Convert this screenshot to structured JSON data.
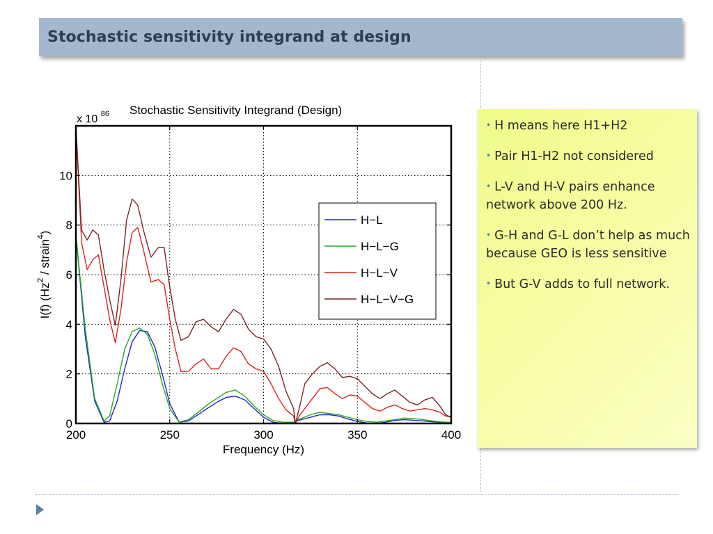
{
  "slide": {
    "title": "Stochastic sensitivity integrand at design"
  },
  "notes": [
    "H means here H1+H2",
    "Pair H1-H2 not considered",
    "L-V and H-V pairs enhance network above 200 Hz.",
    "G-H and G-L don’t help as much because GEO is less sensitive",
    "But G-V adds to full network."
  ],
  "colors": {
    "title_bg": "#a3b8cc",
    "note_bg": "#f5fc9c",
    "accent": "#5b7fa6"
  },
  "chart_data": {
    "type": "line",
    "title": "Stochastic Sensitivity Integrand (Design)",
    "xlabel": "Frequency (Hz)",
    "ylabel": "I(f) (Hz² / strain⁴)",
    "multiplier": "x 10",
    "multiplier_exp": "86",
    "xlim": [
      200,
      400
    ],
    "ylim": [
      0,
      12
    ],
    "xticks": [
      200,
      250,
      300,
      350,
      400
    ],
    "yticks": [
      0,
      2,
      4,
      6,
      8,
      10
    ],
    "grid": true,
    "legend_position": "right",
    "series": [
      {
        "name": "H−L",
        "color": "#2323c8",
        "x": [
          200,
          205,
          210,
          215,
          218,
          222,
          226,
          230,
          234,
          238,
          242,
          246,
          250,
          255,
          260,
          266,
          270,
          275,
          280,
          285,
          290,
          295,
          300,
          305,
          310,
          316,
          320,
          325,
          330,
          335,
          340,
          345,
          350,
          355,
          360,
          365,
          370,
          375,
          380,
          385,
          390,
          395,
          400
        ],
        "y": [
          7.6,
          3.5,
          0.9,
          0.05,
          0.1,
          0.9,
          2.2,
          3.3,
          3.75,
          3.7,
          3.1,
          2.0,
          0.8,
          0.05,
          0.1,
          0.4,
          0.6,
          0.85,
          1.05,
          1.1,
          0.95,
          0.6,
          0.25,
          0.05,
          0.0,
          0.05,
          0.15,
          0.25,
          0.35,
          0.35,
          0.3,
          0.18,
          0.08,
          0.02,
          0.0,
          0.05,
          0.12,
          0.15,
          0.13,
          0.1,
          0.07,
          0.04,
          0.02
        ]
      },
      {
        "name": "H−L−G",
        "color": "#21a821",
        "x": [
          200,
          205,
          210,
          215,
          218,
          222,
          226,
          230,
          234,
          238,
          242,
          246,
          250,
          255,
          260,
          266,
          270,
          275,
          280,
          285,
          290,
          295,
          300,
          305,
          310,
          316,
          320,
          325,
          330,
          335,
          340,
          345,
          350,
          355,
          360,
          365,
          370,
          375,
          380,
          385,
          390,
          395,
          400
        ],
        "y": [
          7.6,
          3.8,
          1.0,
          0.1,
          0.3,
          1.6,
          3.0,
          3.7,
          3.85,
          3.6,
          2.8,
          1.6,
          0.6,
          0.05,
          0.15,
          0.5,
          0.75,
          1.0,
          1.25,
          1.35,
          1.1,
          0.7,
          0.35,
          0.12,
          0.05,
          0.05,
          0.2,
          0.35,
          0.45,
          0.4,
          0.35,
          0.25,
          0.15,
          0.08,
          0.05,
          0.1,
          0.15,
          0.22,
          0.2,
          0.15,
          0.1,
          0.06,
          0.04
        ]
      },
      {
        "name": "H−L−V",
        "color": "#e0231a",
        "x": [
          200,
          203,
          206,
          209,
          212,
          215,
          218,
          221,
          224,
          227,
          230,
          233,
          236,
          240,
          244,
          247,
          250,
          253,
          256,
          260,
          264,
          268,
          272,
          276,
          280,
          284,
          288,
          292,
          296,
          300,
          304,
          308,
          312,
          316,
          317,
          319,
          322,
          326,
          330,
          334,
          338,
          342,
          346,
          350,
          354,
          358,
          362,
          366,
          370,
          374,
          378,
          382,
          386,
          390,
          394,
          397,
          400
        ],
        "y": [
          12.0,
          7.3,
          6.2,
          6.6,
          6.8,
          5.5,
          4.2,
          3.25,
          4.6,
          6.5,
          7.7,
          7.9,
          7.0,
          5.7,
          5.8,
          5.6,
          4.2,
          3.0,
          2.1,
          2.1,
          2.4,
          2.6,
          2.2,
          2.2,
          2.7,
          3.05,
          2.9,
          2.4,
          2.2,
          2.1,
          1.6,
          1.0,
          0.55,
          0.3,
          0.0,
          0.3,
          0.6,
          1.0,
          1.4,
          1.45,
          1.2,
          1.0,
          1.15,
          1.1,
          0.85,
          0.6,
          0.5,
          0.65,
          0.75,
          0.6,
          0.5,
          0.55,
          0.6,
          0.55,
          0.45,
          0.3,
          0.25
        ]
      },
      {
        "name": "H−L−V−G",
        "color": "#7a2424",
        "x": [
          200,
          203,
          206,
          209,
          212,
          215,
          218,
          221,
          224,
          227,
          230,
          233,
          236,
          240,
          244,
          247,
          250,
          253,
          256,
          260,
          264,
          268,
          272,
          276,
          280,
          284,
          288,
          292,
          296,
          300,
          304,
          308,
          312,
          316,
          317,
          319,
          322,
          326,
          330,
          334,
          338,
          342,
          346,
          350,
          354,
          358,
          362,
          366,
          370,
          374,
          378,
          382,
          386,
          390,
          394,
          397,
          400
        ],
        "y": [
          12.0,
          7.8,
          7.4,
          7.8,
          7.6,
          6.2,
          5.0,
          3.95,
          5.8,
          8.2,
          9.05,
          8.8,
          7.8,
          6.7,
          7.1,
          7.1,
          5.5,
          4.2,
          3.35,
          3.5,
          4.1,
          4.2,
          3.9,
          3.7,
          4.2,
          4.6,
          4.4,
          3.8,
          3.5,
          3.4,
          3.0,
          2.3,
          1.3,
          0.6,
          0.0,
          0.6,
          1.6,
          2.0,
          2.3,
          2.45,
          2.2,
          1.85,
          1.9,
          1.8,
          1.5,
          1.2,
          1.0,
          1.2,
          1.35,
          1.1,
          0.85,
          0.75,
          0.95,
          1.05,
          0.7,
          0.35,
          0.25
        ]
      }
    ]
  }
}
